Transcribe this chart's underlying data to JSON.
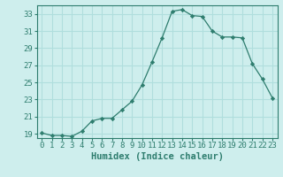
{
  "x": [
    0,
    1,
    2,
    3,
    4,
    5,
    6,
    7,
    8,
    9,
    10,
    11,
    12,
    13,
    14,
    15,
    16,
    17,
    18,
    19,
    20,
    21,
    22,
    23
  ],
  "y": [
    19.1,
    18.8,
    18.8,
    18.7,
    19.3,
    20.5,
    20.8,
    20.8,
    21.8,
    22.8,
    24.7,
    27.4,
    30.2,
    33.3,
    33.5,
    32.8,
    32.7,
    31.0,
    30.3,
    30.3,
    30.2,
    27.2,
    25.4,
    23.2
  ],
  "line_color": "#2e7d6e",
  "marker": "D",
  "marker_size": 2.2,
  "bg_color": "#ceeeed",
  "grid_color": "#b0dedd",
  "xlabel": "Humidex (Indice chaleur)",
  "ylim": [
    18.5,
    34.0
  ],
  "yticks": [
    19,
    21,
    23,
    25,
    27,
    29,
    31,
    33
  ],
  "xticks": [
    0,
    1,
    2,
    3,
    4,
    5,
    6,
    7,
    8,
    9,
    10,
    11,
    12,
    13,
    14,
    15,
    16,
    17,
    18,
    19,
    20,
    21,
    22,
    23
  ],
  "xlabel_fontsize": 7.5,
  "tick_fontsize": 6.5,
  "spine_color": "#2e7d6e"
}
